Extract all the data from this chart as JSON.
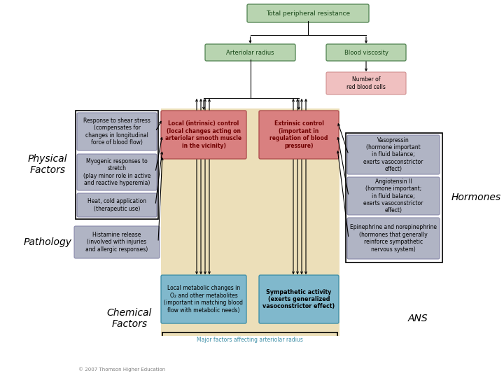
{
  "title": "Total peripheral resistance",
  "arteriolar_radius": "Arteriolar radius",
  "blood_viscosity": "Blood viscosity",
  "red_blood_cells": "Number of\nred blood cells",
  "local_intrinsic": "Local (intrinsic) control\n(local changes acting on\narteriolar smooth muscle\nin the vicinity)",
  "extrinsic_control": "Extrinsic control\n(important in\nregulation of blood\npressure)",
  "response_shear": "Response to shear stress\n(compensates for\nchanges in longitudinal\nforce of blood flow)",
  "myogenic": "Myogenic responses to\nstretch\n(play minor role in active\nand reactive hyperemia)",
  "heat_cold": "Heat, cold application\n(therapeutic use)",
  "histamine": "Histamine release\n(involved with injuries\nand allergic responses)",
  "local_metabolic": "Local metabolic changes in\nO₂ and other metabolites\n(important in matching blood\nflow with metabolic needs)",
  "sympathetic": "Sympathetic activity\n(exerts generalized\nvasoconstrictor effect)",
  "vasopressin": "Vasopressin\n(hormone important\nin fluid balance;\nexerts vasoconstrictor\neffect)",
  "angiotensin": "Angiotensin II\n(hormone important;\nin fluid balance;\nexerts vasoconstrictor\neffect)",
  "epinephrine": "Epinephrine and norepinephrine\n(hormones that generally\nreinforce sympathetic\nnervous system)",
  "physical_factors": "Physical\nFactors",
  "pathology": "Pathology",
  "chemical_factors": "Chemical\nFactors",
  "hormones": "Hormones",
  "ans": "ANS",
  "major_factors": "Major factors affecting arteriolar radius",
  "copyright": "© 2007 Thomson Higher Education",
  "bg_color": "#ffffff",
  "green_box_bg": "#b8d4b0",
  "green_box_border": "#5a8a5a",
  "pink_box_bg": "#d98080",
  "pink_box_border": "#b05050",
  "light_pink_bg": "#f0c0c0",
  "light_pink_border": "#d09090",
  "blue_box_bg": "#80b8cc",
  "blue_box_border": "#4090a8",
  "gray_box_bg": "#b0b4c4",
  "gray_box_border": "#8888aa",
  "tan_bg": "#e8d8a8",
  "label_fontsize": 10,
  "small_fontsize": 5.5,
  "med_fontsize": 6.0
}
